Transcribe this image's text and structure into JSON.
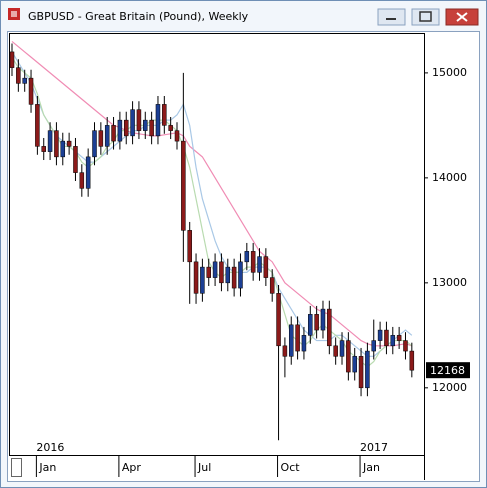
{
  "chart_data": {
    "type": "candlestick",
    "title": "GBPUSD - Great Britain (Pound), Weekly",
    "categories": [
      null,
      null,
      null,
      null,
      null,
      null,
      null,
      null,
      null,
      null,
      null,
      null,
      null,
      null,
      null,
      null,
      null,
      null,
      null,
      null,
      null,
      null,
      null,
      null,
      null,
      null,
      null,
      null,
      null,
      null,
      null,
      null,
      null,
      null,
      null,
      null,
      null,
      null,
      null,
      null,
      null,
      null,
      null,
      null,
      null,
      null,
      null,
      null,
      null,
      null,
      null,
      null,
      null,
      null,
      null,
      null,
      null,
      null,
      null,
      null,
      null,
      null,
      null,
      null
    ],
    "candles": {
      "up_color": "#1c3f94",
      "down_color": "#8b1a1a",
      "open": [
        15200,
        15050,
        14900,
        14950,
        14700,
        14300,
        14250,
        14450,
        14200,
        14350,
        14300,
        14050,
        13900,
        14200,
        14450,
        14300,
        14500,
        14350,
        14550,
        14400,
        14650,
        14450,
        14550,
        14400,
        14700,
        14500,
        14450,
        14350,
        13500,
        13200,
        12900,
        13150,
        13050,
        13200,
        13000,
        13150,
        12950,
        13200,
        13300,
        13100,
        13250,
        13050,
        12900,
        12400,
        12300,
        12600,
        12350,
        12500,
        12700,
        12550,
        12750,
        12400,
        12300,
        12450,
        12150,
        12300,
        12000,
        12350,
        12450,
        12550,
        12400,
        12500,
        12450,
        12350
      ],
      "high": [
        15280,
        15130,
        15030,
        15030,
        14780,
        14380,
        14530,
        14530,
        14430,
        14430,
        14380,
        14130,
        14280,
        14530,
        14530,
        14580,
        14580,
        14630,
        14630,
        14730,
        14730,
        14630,
        14630,
        14780,
        14780,
        14580,
        14530,
        15000,
        13580,
        13280,
        13230,
        13230,
        13280,
        13280,
        13230,
        13230,
        13280,
        13380,
        13380,
        13330,
        13330,
        13130,
        12980,
        12480,
        12680,
        12680,
        12580,
        12780,
        12780,
        12830,
        12830,
        12480,
        12530,
        12530,
        12380,
        12380,
        12430,
        12650,
        12630,
        12630,
        12580,
        12580,
        12530,
        12430
      ],
      "low": [
        14970,
        14820,
        14820,
        14620,
        14220,
        14170,
        14170,
        14120,
        14120,
        14220,
        13970,
        13820,
        13820,
        14120,
        14220,
        14220,
        14270,
        14270,
        14320,
        14320,
        14370,
        14370,
        14320,
        14320,
        14420,
        14370,
        14270,
        13200,
        12800,
        12800,
        12820,
        12970,
        12970,
        12920,
        12920,
        12870,
        12870,
        13120,
        13020,
        13020,
        12970,
        12820,
        11500,
        12100,
        12220,
        12270,
        12270,
        12420,
        12470,
        12470,
        12320,
        12220,
        12220,
        12070,
        12070,
        11920,
        11920,
        12270,
        12370,
        12320,
        12320,
        12370,
        12270,
        12100
      ],
      "close": [
        15050,
        14900,
        14950,
        14700,
        14300,
        14250,
        14450,
        14200,
        14350,
        14300,
        14050,
        13900,
        14200,
        14450,
        14300,
        14500,
        14350,
        14550,
        14400,
        14650,
        14450,
        14550,
        14400,
        14700,
        14500,
        14450,
        14350,
        13500,
        13200,
        12900,
        13150,
        13050,
        13200,
        13000,
        13150,
        12950,
        13200,
        13300,
        13100,
        13250,
        13050,
        12900,
        12400,
        12300,
        12600,
        12350,
        12500,
        12700,
        12550,
        12750,
        12400,
        12300,
        12450,
        12150,
        12300,
        12000,
        12350,
        12450,
        12550,
        12400,
        12500,
        12450,
        12350,
        12168
      ]
    },
    "series": [
      {
        "color": "#f08cb4",
        "values": [
          15300,
          15250,
          15200,
          15150,
          15100,
          15050,
          15000,
          14950,
          14900,
          14850,
          14800,
          14750,
          14700,
          14650,
          14600,
          14550,
          14500,
          14480,
          14450,
          14430,
          14420,
          14410,
          14400,
          14400,
          14410,
          14420,
          14430,
          14400,
          14300,
          14250,
          14200,
          14100,
          14000,
          13900,
          13800,
          13700,
          13600,
          13500,
          13400,
          13300,
          13250,
          13200,
          13100,
          13000,
          12950,
          12900,
          12850,
          12800,
          12750,
          12720,
          12700,
          12650,
          12600,
          12550,
          12500,
          12450,
          12420,
          12400,
          12400,
          12400,
          12400,
          12410,
          12420,
          12400
        ]
      },
      {
        "color": "#a9c8e6",
        "values": [
          15200,
          15100,
          15000,
          14900,
          14750,
          14600,
          14500,
          14400,
          14350,
          14300,
          14250,
          14200,
          14150,
          14150,
          14200,
          14250,
          14300,
          14350,
          14400,
          14450,
          14450,
          14500,
          14500,
          14500,
          14550,
          14550,
          14600,
          14700,
          14500,
          14100,
          13800,
          13600,
          13400,
          13250,
          13150,
          13100,
          13100,
          13100,
          13150,
          13150,
          13150,
          13100,
          12950,
          12850,
          12750,
          12650,
          12550,
          12500,
          12450,
          12450,
          12450,
          12500,
          12500,
          12450,
          12400,
          12350,
          12300,
          12300,
          12350,
          12400,
          12450,
          12500,
          12550,
          12500
        ]
      },
      {
        "color": "#b9dbb0",
        "values": [
          15150,
          15050,
          15000,
          14950,
          14800,
          14600,
          14500,
          14400,
          14300,
          14300,
          14250,
          14150,
          14100,
          14150,
          14200,
          14300,
          14350,
          14450,
          14450,
          14500,
          14500,
          14500,
          14550,
          14550,
          14550,
          14500,
          14450,
          14300,
          14100,
          13800,
          13500,
          13200,
          13100,
          13050,
          13100,
          13100,
          13100,
          13150,
          13150,
          13200,
          13150,
          13100,
          12900,
          12700,
          12500,
          12450,
          12400,
          12450,
          12550,
          12600,
          12550,
          12500,
          12450,
          12350,
          12300,
          12250,
          12200,
          12250,
          12350,
          12400,
          12450,
          12450,
          12450,
          12400
        ]
      }
    ],
    "ylim": [
      11360,
      15380
    ],
    "yticks": [
      12000,
      13000,
      14000,
      15000
    ],
    "xticks": [
      {
        "value": 4,
        "label": "Jan"
      },
      {
        "value": 17,
        "label": "Apr"
      },
      {
        "value": 29,
        "label": "Jul"
      },
      {
        "value": 42,
        "label": "Oct"
      },
      {
        "value": 55,
        "label": "Jan"
      }
    ],
    "year_ticks": [
      {
        "value": 4,
        "label": "2016"
      },
      {
        "value": 55,
        "label": "2017"
      }
    ]
  }
}
